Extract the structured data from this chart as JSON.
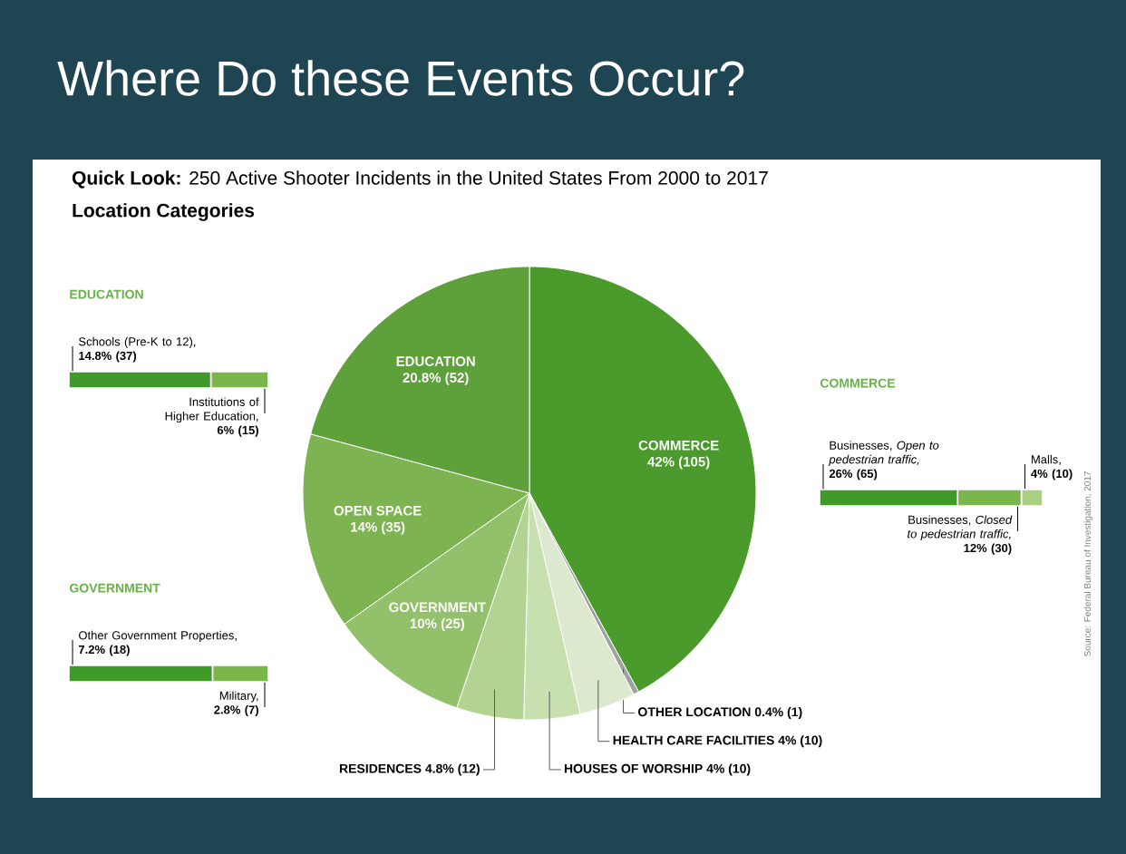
{
  "chart_data": [
    {
      "type": "pie",
      "title": "Where Do these Events Occur?",
      "subtitle": "**Quick Look:** 250 Active Shooter Incidents in the United States From 2000 to 2017",
      "categories": [
        "COMMERCE",
        "OTHER LOCATION",
        "HEALTH CARE FACILITIES",
        "HOUSES OF WORSHIP",
        "RESIDENCES",
        "GOVERNMENT",
        "OPEN SPACE",
        "EDUCATION"
      ],
      "values": [
        42,
        0.4,
        4,
        4,
        4.8,
        10,
        14,
        20.8
      ],
      "value_labels": [
        "42% (105)",
        "0.4% (1)",
        "4% (10)",
        "4% (10)",
        "4.8% (12)",
        "10% (25)",
        "14% (35)",
        "20.8% (52)"
      ],
      "colors": [
        "#4a9a2c",
        "#9fa3a0",
        "#dce9cf",
        "#c8e0b0",
        "#b3d392",
        "#93c06a",
        "#7db350",
        "#5ea03a"
      ],
      "annotations": [
        "Location Categories",
        "Source: Federal Bureau of Investigation, 2017"
      ]
    },
    {
      "type": "bar",
      "orientation": "horizontal",
      "stacked": true,
      "title": "EDUCATION",
      "categories": [
        null
      ],
      "series": [
        {
          "name": "Schools (Pre-K to 12),",
          "color": "#3f9a2a",
          "values": [
            14.8
          ],
          "value_labels": [
            "14.8% (37)"
          ]
        },
        {
          "name": "Institutions of Higher Education,",
          "color": "#7ab64c",
          "values": [
            6
          ],
          "value_labels": [
            "6% (15)"
          ]
        }
      ]
    },
    {
      "type": "bar",
      "orientation": "horizontal",
      "stacked": true,
      "title": "COMMERCE",
      "categories": [
        null
      ],
      "series": [
        {
          "name": "Businesses, *Open to pedestrian traffic,*",
          "color": "#3f9a2a",
          "values": [
            26
          ],
          "value_labels": [
            "26% (65)"
          ]
        },
        {
          "name": "Businesses, *Closed to pedestrian traffic,*",
          "color": "#7ab64c",
          "values": [
            12
          ],
          "value_labels": [
            "12% (30)"
          ]
        },
        {
          "name": "Malls,",
          "color": "#a8d080",
          "values": [
            4
          ],
          "value_labels": [
            "4% (10)"
          ]
        }
      ]
    },
    {
      "type": "bar",
      "orientation": "horizontal",
      "stacked": true,
      "title": "GOVERNMENT",
      "categories": [
        null
      ],
      "series": [
        {
          "name": "Other Government Properties,",
          "color": "#3f9a2a",
          "values": [
            7.2
          ],
          "value_labels": [
            "7.2% (18)"
          ]
        },
        {
          "name": "Military,",
          "color": "#7ab64c",
          "values": [
            2.8
          ],
          "value_labels": [
            "2.8% (7)"
          ]
        }
      ]
    }
  ]
}
